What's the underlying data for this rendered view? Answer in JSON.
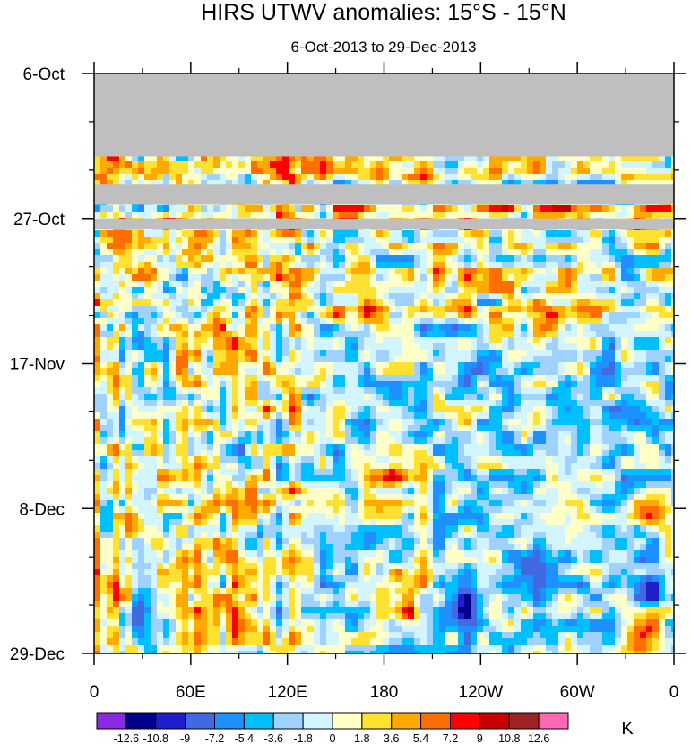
{
  "chart_data": {
    "type": "heatmap",
    "title": "HIRS UTWV anomalies: 15°S - 15°N",
    "subtitle": "6-Oct-2013 to 29-Dec-2013",
    "x_ticks": [
      "0",
      "60E",
      "120E",
      "180",
      "120W",
      "60W",
      "0"
    ],
    "x_tick_longitudes": [
      0,
      60,
      120,
      180,
      240,
      300,
      360
    ],
    "x_range": [
      0,
      360
    ],
    "y_ticks": [
      "6-Oct",
      "27-Oct",
      "17-Nov",
      "8-Dec",
      "29-Dec"
    ],
    "y_tick_days": [
      0,
      21,
      42,
      63,
      84
    ],
    "y_range_days": [
      0,
      84
    ],
    "missing_periods_days": [
      [
        0,
        12
      ],
      [
        16,
        19
      ],
      [
        21,
        22.5
      ]
    ],
    "colorbar": {
      "unit": "K",
      "levels": [
        "-12.6",
        "-10.8",
        "-9",
        "-7.2",
        "-5.4",
        "-3.6",
        "-1.8",
        "0",
        "1.8",
        "3.6",
        "5.4",
        "7.2",
        "9",
        "10.8",
        "12.6"
      ],
      "colors": [
        "#8a2be2",
        "#00008b",
        "#1e1ecd",
        "#4169e1",
        "#1e90ff",
        "#00bfff",
        "#a0d2ff",
        "#d2f5ff",
        "#ffffc8",
        "#ffe132",
        "#ffaa00",
        "#ff6e00",
        "#ff0000",
        "#c80000",
        "#a02323",
        "#ff69b4"
      ]
    },
    "missing_color": "#bfbfbf"
  }
}
